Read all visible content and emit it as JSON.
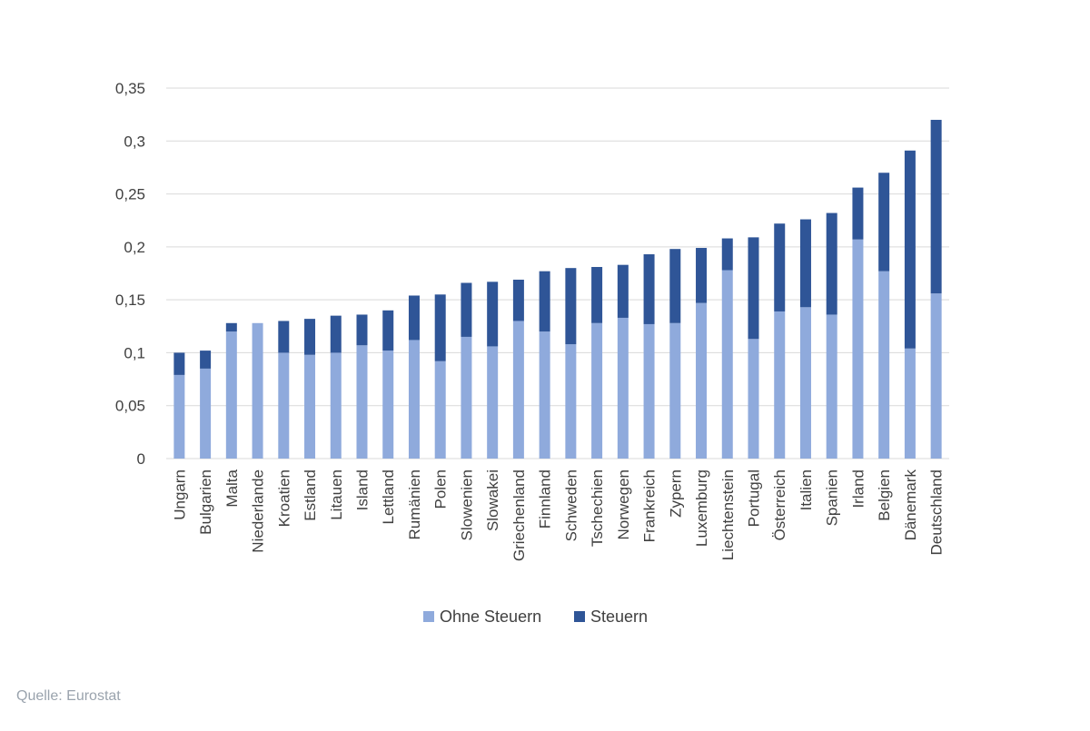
{
  "source_text": "Quelle: Eurostat",
  "colors": {
    "ohne": "#8faadc",
    "steuern": "#2f5597",
    "grid": "#d9d9d9",
    "axis_text": "#404040"
  },
  "chart_data": {
    "type": "bar",
    "stacked": true,
    "ylim": [
      0,
      0.35
    ],
    "yticks": [
      "0",
      "0,05",
      "0,1",
      "0,15",
      "0,2",
      "0,25",
      "0,3",
      "0,35"
    ],
    "ytick_values": [
      0,
      0.05,
      0.1,
      0.15,
      0.2,
      0.25,
      0.3,
      0.35
    ],
    "grid": true,
    "legend_position": "bottom",
    "categories": [
      "Ungarn",
      "Bulgarien",
      "Malta",
      "Niederlande",
      "Kroatien",
      "Estland",
      "Litauen",
      "Island",
      "Lettland",
      "Rumänien",
      "Polen",
      "Slowenien",
      "Slowakei",
      "Griechenland",
      "Finnland",
      "Schweden",
      "Tschechien",
      "Norwegen",
      "Frankreich",
      "Zypern",
      "Luxemburg",
      "Liechtenstein",
      "Portugal",
      "Österreich",
      "Italien",
      "Spanien",
      "Irland",
      "Belgien",
      "Dänemark",
      "Deutschland"
    ],
    "series": [
      {
        "name": "Ohne Steuern",
        "color": "#8faadc",
        "values": [
          0.079,
          0.085,
          0.12,
          0.128,
          0.1,
          0.098,
          0.1,
          0.107,
          0.102,
          0.112,
          0.092,
          0.115,
          0.106,
          0.13,
          0.12,
          0.108,
          0.128,
          0.133,
          0.127,
          0.128,
          0.147,
          0.178,
          0.113,
          0.139,
          0.143,
          0.136,
          0.207,
          0.177,
          0.104,
          0.156
        ]
      },
      {
        "name": "Steuern",
        "color": "#2f5597",
        "values": [
          0.021,
          0.017,
          0.008,
          0.0,
          0.03,
          0.034,
          0.035,
          0.029,
          0.038,
          0.042,
          0.063,
          0.051,
          0.061,
          0.039,
          0.057,
          0.072,
          0.053,
          0.05,
          0.066,
          0.07,
          0.052,
          0.03,
          0.096,
          0.083,
          0.083,
          0.096,
          0.049,
          0.093,
          0.187,
          0.164
        ]
      }
    ]
  }
}
